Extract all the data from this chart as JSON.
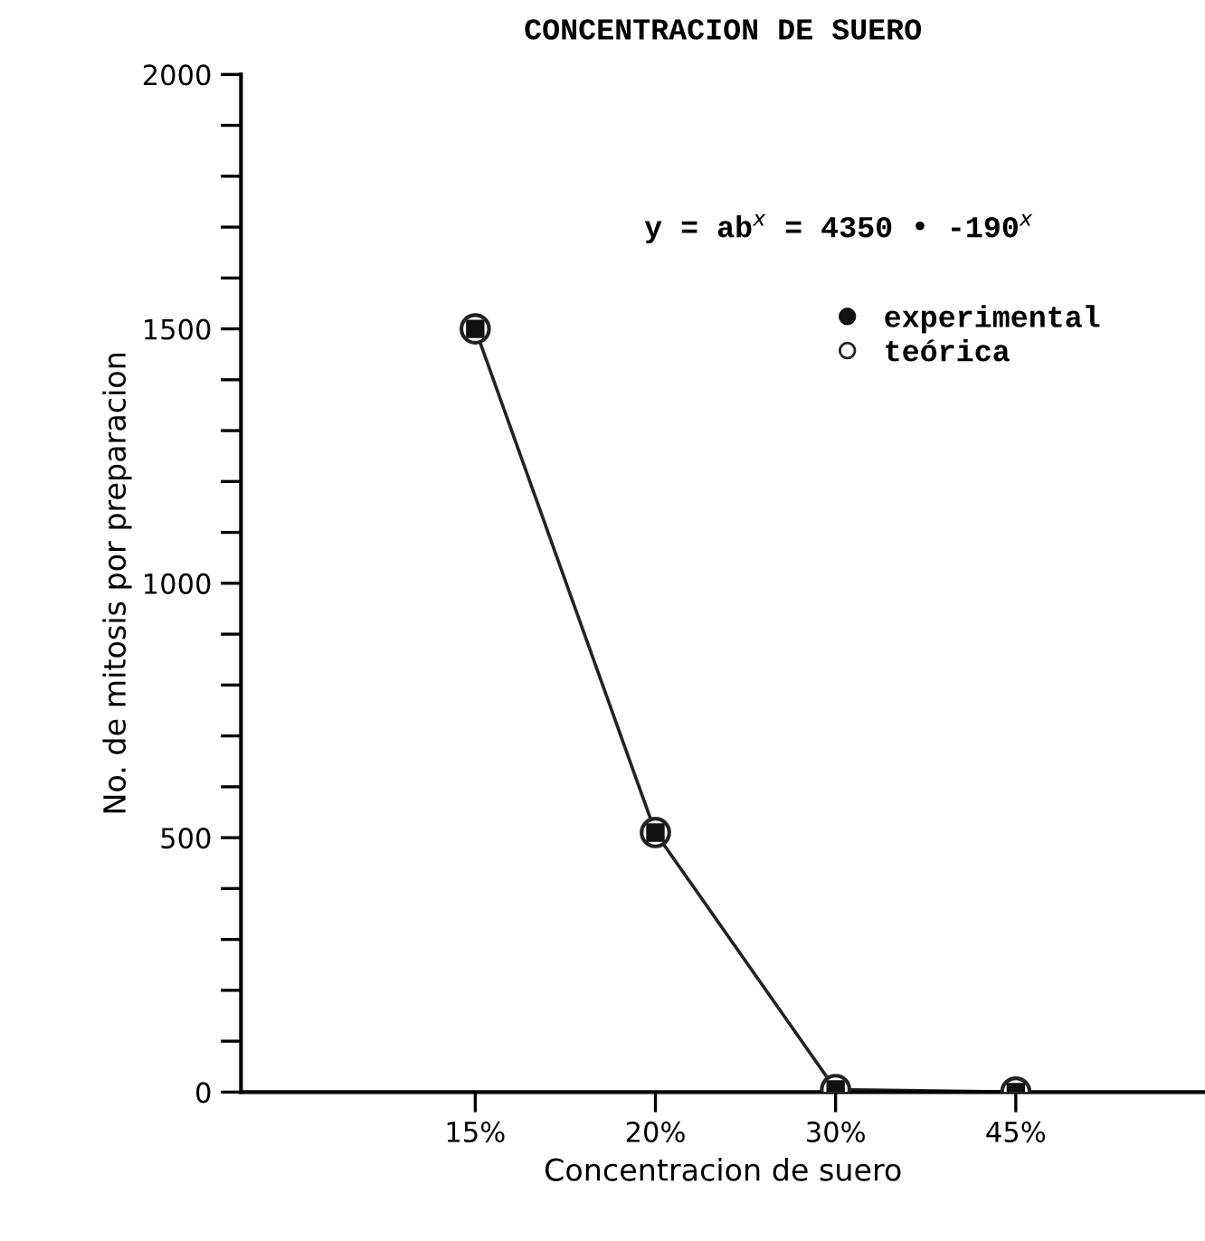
{
  "chart_data": {
    "type": "line",
    "title": "CONCENTRACION DE SUERO",
    "xlabel": "Concentracion de suero",
    "ylabel": "No. de mitosis por preparacion",
    "categories": [
      "15%",
      "20%",
      "30%",
      "45%"
    ],
    "series": [
      {
        "name": "experimental",
        "type": "scatter",
        "color": "#111111",
        "marker": "square",
        "values": [
          1500,
          510,
          5,
          0
        ]
      },
      {
        "name": "teórica",
        "color": "#222222",
        "marker": "circle",
        "values": [
          1500,
          510,
          5,
          0
        ]
      }
    ],
    "ylim": [
      0,
      2000
    ],
    "yticks": [
      0,
      {
        "value": 100,
        "label": null
      },
      {
        "value": 200,
        "label": null
      },
      {
        "value": 300,
        "label": null
      },
      {
        "value": 400,
        "label": null
      },
      500,
      {
        "value": 600,
        "label": null
      },
      {
        "value": 700,
        "label": null
      },
      {
        "value": 800,
        "label": null
      },
      {
        "value": 900,
        "label": null
      },
      1000,
      {
        "value": 1100,
        "label": null
      },
      {
        "value": 1200,
        "label": null
      },
      {
        "value": 1300,
        "label": null
      },
      {
        "value": 1400,
        "label": null
      },
      1500,
      {
        "value": 1600,
        "label": null
      },
      {
        "value": 1700,
        "label": null
      },
      {
        "value": 1800,
        "label": null
      },
      {
        "value": 1900,
        "label": null
      },
      2000
    ],
    "annotations": [
      "y = ab$^{x}$ = 4350 • -190$^{x}$"
    ],
    "legend": "top right",
    "grid": false
  }
}
